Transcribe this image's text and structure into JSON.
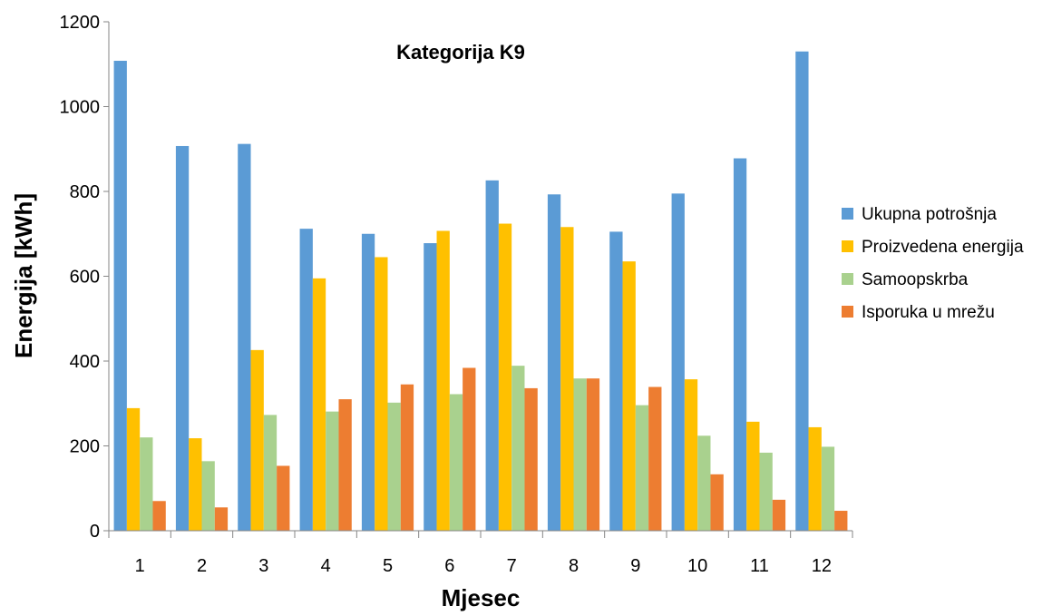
{
  "chart_data": {
    "type": "bar",
    "title": "Kategorija K9",
    "xlabel": "Mjesec",
    "ylabel": "Energija [kWh]",
    "ylim": [
      0,
      1200
    ],
    "yticks": [
      0,
      200,
      400,
      600,
      800,
      1000,
      1200
    ],
    "grid": false,
    "legend_position": "right",
    "categories": [
      "1",
      "2",
      "3",
      "4",
      "5",
      "6",
      "7",
      "8",
      "9",
      "10",
      "11",
      "12"
    ],
    "series": [
      {
        "name": "Ukupna potrošnja",
        "color": "#5B9BD5",
        "values": [
          1108,
          907,
          912,
          712,
          700,
          678,
          826,
          793,
          705,
          795,
          878,
          1130
        ]
      },
      {
        "name": "Proizvedena energija",
        "color": "#FFC000",
        "values": [
          289,
          218,
          426,
          595,
          645,
          707,
          724,
          716,
          635,
          357,
          257,
          244
        ]
      },
      {
        "name": "Samoopskrba",
        "color": "#A9D18E",
        "values": [
          220,
          164,
          273,
          281,
          302,
          322,
          389,
          359,
          296,
          224,
          184,
          198
        ]
      },
      {
        "name": "Isporuka u mrežu",
        "color": "#ED7D31",
        "values": [
          70,
          55,
          153,
          310,
          345,
          384,
          336,
          359,
          339,
          133,
          73,
          47
        ]
      }
    ]
  }
}
